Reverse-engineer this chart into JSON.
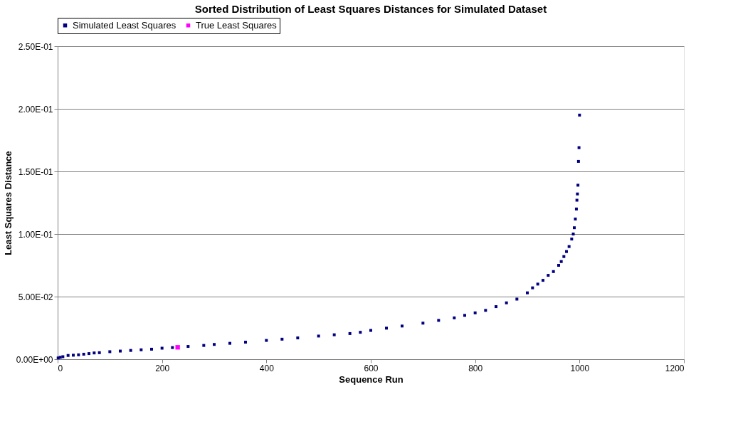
{
  "chart_data": {
    "type": "scatter",
    "title": "Sorted Distribution of Least Squares Distances for Simulated Dataset",
    "xlabel": "Sequence Run",
    "ylabel": "Least Squares Distance",
    "xlim": [
      0,
      1200
    ],
    "xticks": [
      0,
      200,
      400,
      600,
      800,
      1000,
      1200
    ],
    "ylim": [
      0,
      0.25
    ],
    "yticks": [
      {
        "value": 0,
        "label": "0.00E+00"
      },
      {
        "value": 0.05,
        "label": "5.00E-02"
      },
      {
        "value": 0.1,
        "label": "1.00E-01"
      },
      {
        "value": 0.15,
        "label": "1.50E-01"
      },
      {
        "value": 0.2,
        "label": "2.00E-01"
      },
      {
        "value": 0.25,
        "label": "2.50E-01"
      }
    ],
    "grid": "y",
    "legend": "top",
    "series": [
      {
        "name": "Simulated Least Squares",
        "color": "#000080",
        "marker": "square",
        "x": [
          1,
          5,
          10,
          20,
          30,
          40,
          50,
          60,
          70,
          80,
          100,
          120,
          140,
          160,
          180,
          200,
          220,
          250,
          280,
          300,
          330,
          360,
          400,
          430,
          460,
          500,
          530,
          560,
          580,
          600,
          630,
          660,
          700,
          730,
          760,
          780,
          800,
          820,
          840,
          860,
          880,
          900,
          910,
          920,
          930,
          940,
          950,
          960,
          965,
          970,
          975,
          980,
          985,
          988,
          990,
          992,
          994,
          995,
          996,
          997,
          998,
          999,
          1000
        ],
        "values": [
          0.001,
          0.0015,
          0.002,
          0.003,
          0.0032,
          0.0035,
          0.004,
          0.0045,
          0.005,
          0.0052,
          0.006,
          0.0065,
          0.007,
          0.0075,
          0.008,
          0.0088,
          0.0093,
          0.0102,
          0.011,
          0.0118,
          0.0127,
          0.0136,
          0.015,
          0.016,
          0.017,
          0.0185,
          0.0195,
          0.0205,
          0.0215,
          0.023,
          0.0248,
          0.0265,
          0.0288,
          0.031,
          0.033,
          0.035,
          0.037,
          0.039,
          0.042,
          0.045,
          0.048,
          0.053,
          0.057,
          0.06,
          0.063,
          0.067,
          0.07,
          0.075,
          0.078,
          0.082,
          0.086,
          0.09,
          0.096,
          0.1,
          0.105,
          0.112,
          0.12,
          0.127,
          0.132,
          0.139,
          0.158,
          0.169,
          0.195
        ]
      },
      {
        "name": "True Least Squares",
        "color": "#ff00ff",
        "marker": "square",
        "x": [
          230
        ],
        "values": [
          0.0095
        ]
      }
    ]
  }
}
